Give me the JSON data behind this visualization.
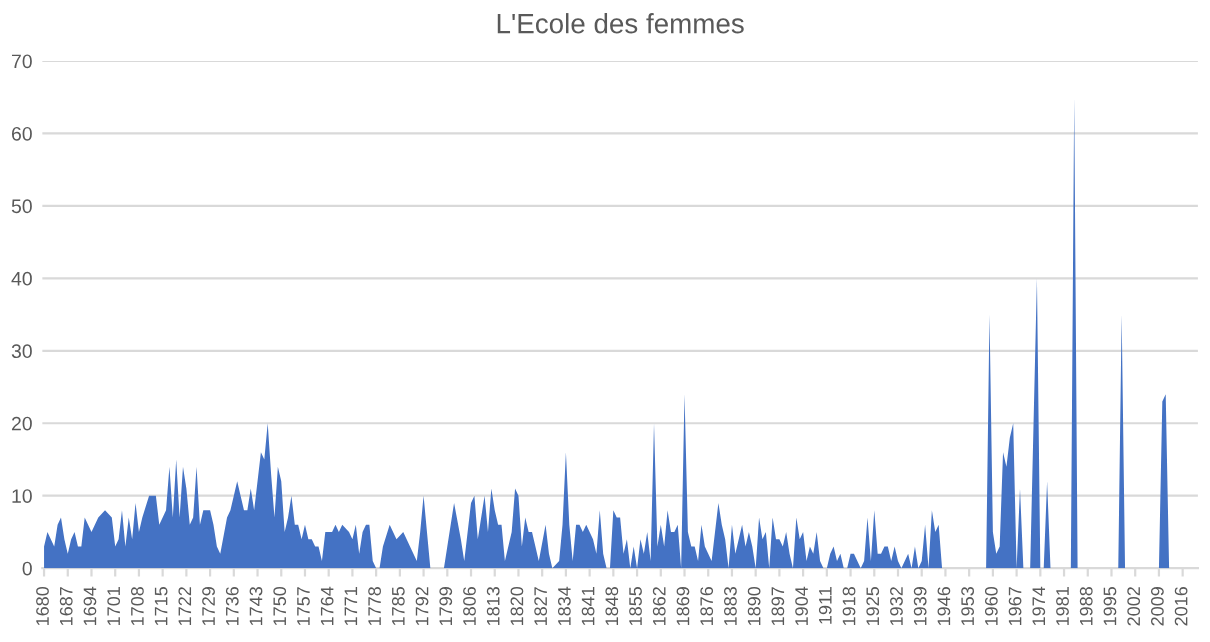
{
  "chart_data": {
    "type": "area",
    "title": "L'Ecole des femmes",
    "series": [
      {
        "color": "#4472c4",
        "x": [
          1680,
          1681,
          1682,
          1683,
          1684,
          1685,
          1686,
          1687,
          1688,
          1689,
          1690,
          1691,
          1692,
          1693,
          1694,
          1696,
          1698,
          1700,
          1701,
          1702,
          1703,
          1704,
          1705,
          1706,
          1707,
          1708,
          1709,
          1711,
          1713,
          1714,
          1716,
          1717,
          1718,
          1719,
          1720,
          1721,
          1722,
          1723,
          1724,
          1725,
          1726,
          1727,
          1729,
          1730,
          1731,
          1732,
          1734,
          1735,
          1737,
          1738,
          1739,
          1740,
          1741,
          1742,
          1744,
          1745,
          1746,
          1747,
          1748,
          1749,
          1750,
          1751,
          1752,
          1753,
          1754,
          1755,
          1756,
          1757,
          1758,
          1759,
          1760,
          1761,
          1762,
          1763,
          1765,
          1766,
          1767,
          1768,
          1770,
          1771,
          1772,
          1773,
          1774,
          1775,
          1776,
          1777,
          1778,
          1779,
          1780,
          1782,
          1783,
          1784,
          1786,
          1788,
          1790,
          1791,
          1792,
          1793,
          1794,
          1798,
          1799,
          1801,
          1803,
          1804,
          1806,
          1807,
          1808,
          1810,
          1811,
          1812,
          1813,
          1814,
          1815,
          1816,
          1818,
          1819,
          1820,
          1821,
          1822,
          1823,
          1824,
          1825,
          1826,
          1828,
          1829,
          1830,
          1832,
          1833,
          1834,
          1835,
          1836,
          1837,
          1838,
          1839,
          1840,
          1841,
          1842,
          1843,
          1844,
          1845,
          1846,
          1847,
          1848,
          1849,
          1850,
          1851,
          1852,
          1853,
          1854,
          1855,
          1856,
          1857,
          1858,
          1859,
          1860,
          1861,
          1862,
          1863,
          1864,
          1865,
          1866,
          1867,
          1868,
          1869,
          1870,
          1871,
          1872,
          1873,
          1874,
          1875,
          1876,
          1877,
          1878,
          1879,
          1880,
          1881,
          1882,
          1883,
          1884,
          1885,
          1886,
          1887,
          1888,
          1889,
          1890,
          1891,
          1892,
          1893,
          1894,
          1895,
          1896,
          1897,
          1898,
          1899,
          1900,
          1901,
          1902,
          1903,
          1904,
          1905,
          1906,
          1907,
          1908,
          1909,
          1910,
          1911,
          1912,
          1913,
          1914,
          1915,
          1916,
          1917,
          1918,
          1919,
          1920,
          1921,
          1922,
          1923,
          1924,
          1925,
          1926,
          1927,
          1928,
          1929,
          1930,
          1931,
          1932,
          1933,
          1934,
          1935,
          1936,
          1937,
          1938,
          1939,
          1940,
          1941,
          1942,
          1943,
          1944,
          1945,
          1957,
          1958,
          1959,
          1960,
          1961,
          1962,
          1963,
          1964,
          1965,
          1966,
          1967,
          1968,
          1969,
          1971,
          1973,
          1974,
          1975,
          1976,
          1977,
          1983,
          1984,
          1985,
          1997,
          1998,
          1999,
          2009,
          2010,
          2011,
          2012,
          2020
        ],
        "values": [
          3,
          5,
          4,
          3,
          6,
          7,
          4,
          2,
          4,
          5,
          3,
          3,
          7,
          6,
          5,
          7,
          8,
          7,
          3,
          4,
          8,
          3,
          7,
          4,
          9,
          5,
          7,
          10,
          10,
          6,
          8,
          14,
          7,
          15,
          7,
          14,
          11,
          6,
          7,
          14,
          6,
          8,
          8,
          6,
          3,
          2,
          7,
          8,
          12,
          10,
          8,
          8,
          11,
          8,
          16,
          15,
          20,
          13,
          7,
          14,
          12,
          5,
          7,
          10,
          6,
          6,
          4,
          6,
          4,
          4,
          3,
          3,
          1,
          5,
          5,
          6,
          5,
          6,
          5,
          4,
          6,
          2,
          5,
          6,
          6,
          1,
          0,
          0,
          3,
          6,
          5,
          4,
          5,
          3,
          1,
          5,
          10,
          5,
          0,
          0,
          3,
          9,
          4,
          1,
          9,
          10,
          4,
          10,
          5,
          11,
          8,
          6,
          6,
          1,
          5,
          11,
          10,
          3,
          7,
          5,
          5,
          3,
          1,
          6,
          2,
          0,
          1,
          6,
          16,
          6,
          1,
          6,
          6,
          5,
          6,
          5,
          4,
          2,
          8,
          2,
          0,
          0,
          8,
          7,
          7,
          2,
          4,
          0,
          3,
          0,
          4,
          2,
          5,
          1,
          20,
          3,
          6,
          3,
          8,
          5,
          5,
          6,
          0,
          24,
          5,
          3,
          3,
          1,
          6,
          3,
          2,
          1,
          5,
          9,
          6,
          4,
          0,
          6,
          2,
          4,
          6,
          3,
          5,
          3,
          0,
          7,
          4,
          5,
          0,
          7,
          4,
          4,
          3,
          5,
          2,
          0,
          7,
          4,
          5,
          1,
          3,
          2,
          5,
          1,
          0,
          0,
          2,
          3,
          1,
          2,
          0,
          0,
          2,
          2,
          1,
          0,
          1,
          7,
          1,
          8,
          2,
          2,
          3,
          3,
          1,
          3,
          1,
          0,
          1,
          2,
          0,
          3,
          0,
          1,
          6,
          0,
          8,
          5,
          6,
          0,
          0,
          0,
          35,
          5,
          2,
          3,
          16,
          14,
          18,
          20,
          0,
          11,
          0,
          0,
          40,
          0,
          0,
          12,
          0,
          0,
          65,
          0,
          0,
          35,
          0,
          0,
          23,
          24,
          0,
          0
        ]
      }
    ],
    "xlim": [
      1679.5,
      2020.5
    ],
    "xticks": [
      1680,
      1687,
      1694,
      1701,
      1708,
      1715,
      1722,
      1729,
      1736,
      1743,
      1750,
      1757,
      1764,
      1771,
      1778,
      1785,
      1792,
      1799,
      1806,
      1813,
      1820,
      1827,
      1834,
      1841,
      1848,
      1855,
      1862,
      1869,
      1876,
      1883,
      1890,
      1897,
      1904,
      1911,
      1918,
      1925,
      1932,
      1939,
      1946,
      1953,
      1960,
      1967,
      1974,
      1981,
      1988,
      1995,
      2002,
      2009,
      2016
    ],
    "ylim": [
      0,
      70
    ],
    "yticks": [
      0,
      10,
      20,
      30,
      40,
      50,
      60,
      70
    ],
    "grid": "y",
    "legend": false
  }
}
